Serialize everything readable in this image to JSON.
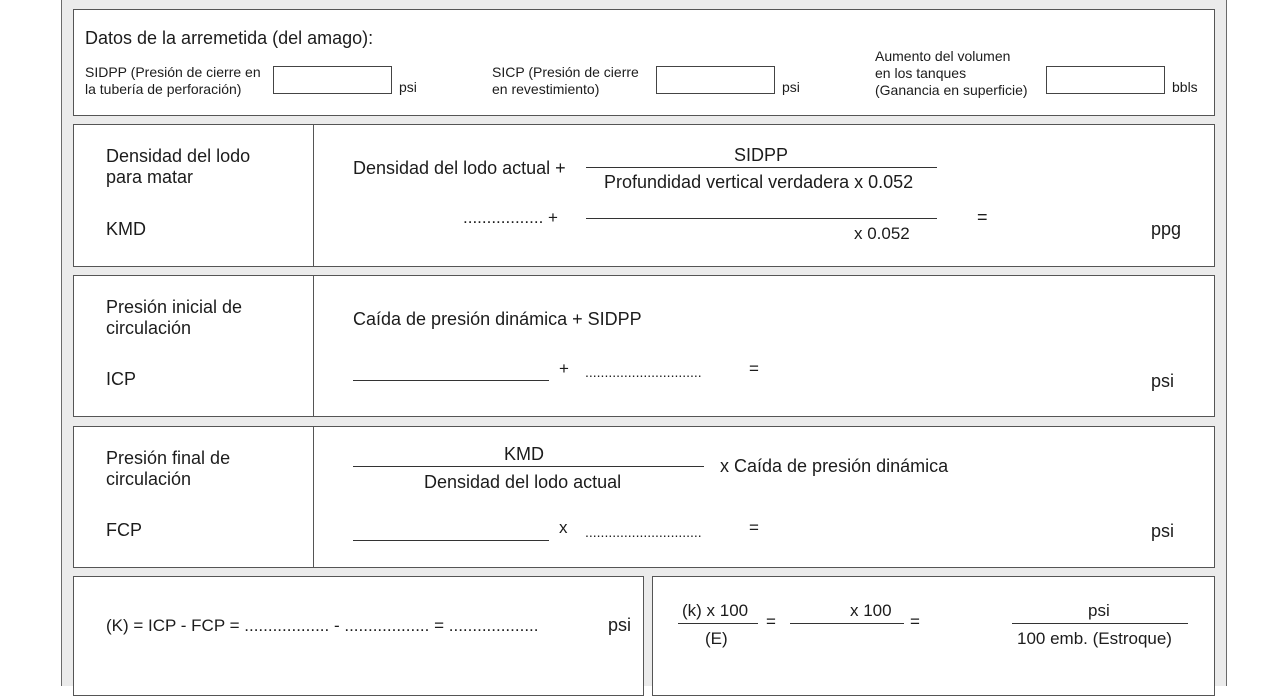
{
  "kick": {
    "title": "Datos de la arremetida (del amago):",
    "sidpp_label_1": "SIDPP (Presión de cierre en",
    "sidpp_label_2": "la tubería de perforación)",
    "sidpp_value": "",
    "sidpp_unit": "psi",
    "sicp_label_1": "SICP (Presión de cierre",
    "sicp_label_2": "en revestimiento)",
    "sicp_value": "",
    "sicp_unit": "psi",
    "pit_label_1": "Aumento del volumen",
    "pit_label_2": "en los tanques",
    "pit_label_3": "(Ganancia en superficie)",
    "pit_value": "",
    "pit_unit": "bbls"
  },
  "kmd": {
    "label_1": "Densidad del lodo",
    "label_2": "para matar",
    "abbr": "KMD",
    "formula_left": "Densidad del lodo actual +",
    "numerator": "SIDPP",
    "denominator": "Profundidad vertical verdadera x 0.052",
    "fill_left": "................. +",
    "fill_denominator": "x 0.052",
    "equals": "=",
    "unit": "ppg"
  },
  "icp": {
    "label_1": "Presión inicial de",
    "label_2": "circulación",
    "abbr": "ICP",
    "formula": "Caída de presión dinámica + SIDPP",
    "plus": "+",
    "dots": "..............................",
    "equals": "=",
    "unit": "psi"
  },
  "fcp": {
    "label_1": "Presión final de",
    "label_2": "circulación",
    "abbr": "FCP",
    "numerator": "KMD",
    "denominator": "Densidad del lodo actual",
    "formula_right": "x Caída de presión dinámica",
    "times": "x",
    "dots": "..............................",
    "equals": "=",
    "unit": "psi"
  },
  "k": {
    "formula": "(K) = ICP - FCP = .................. - .................. =  ...................",
    "unit": "psi",
    "frac1_num": "(k) x 100",
    "frac1_den": "(E)",
    "eq1": "=",
    "frac2_num": "x 100",
    "eq2": "=",
    "frac3_num": "psi",
    "frac3_den": "100 emb. (Estroque)"
  }
}
